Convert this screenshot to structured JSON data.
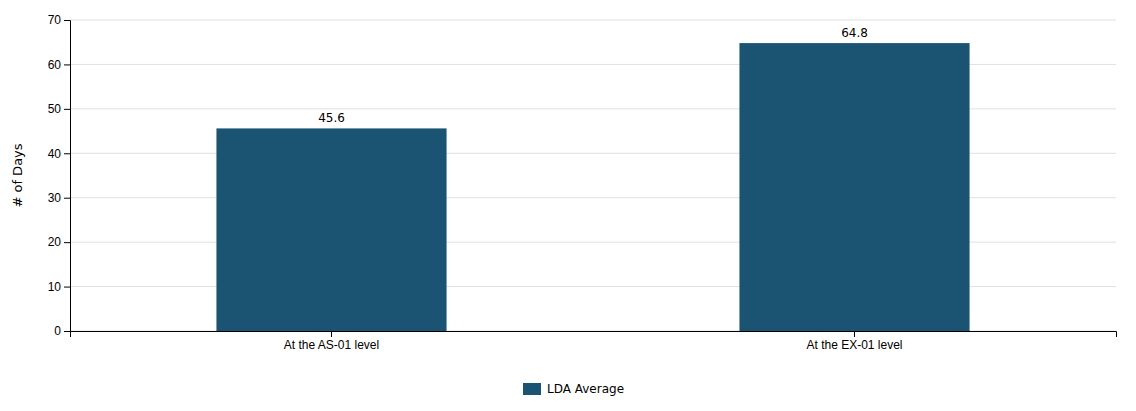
{
  "chart_data": {
    "type": "bar",
    "categories": [
      "At the AS-01 level",
      "At the EX-01 level"
    ],
    "series": [
      {
        "name": "LDA Average",
        "color": "#1a5472",
        "values": [
          45.6,
          64.8
        ]
      }
    ],
    "y_label": "# of Days",
    "ylim": [
      0,
      70
    ],
    "yticks": [
      0,
      10,
      20,
      30,
      40,
      50,
      60,
      70
    ],
    "grid": true,
    "legend": "bottom",
    "data_labels": true
  }
}
